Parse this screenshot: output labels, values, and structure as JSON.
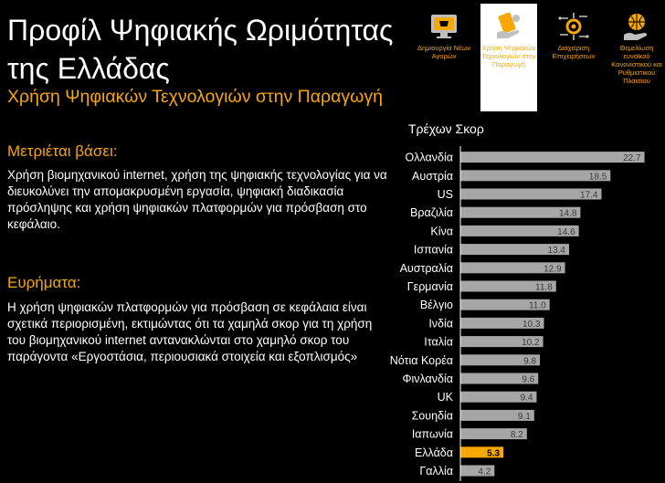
{
  "header": {
    "title_line1": "Προφίλ Ψηφιακής Ωριμότητας",
    "title_line2": "της Ελλάδας",
    "subtitle": "Χρήση Ψηφιακών Τεχνολογιών στην Παραγωγή"
  },
  "nav": {
    "items": [
      {
        "label": "Δημιουργία Νέων Αγορών",
        "icon": "cart-screen-icon"
      },
      {
        "label": "Χρήση Ψηφιακών Τεχνολογιών στην Παραγωγή",
        "icon": "hand-device-icon"
      },
      {
        "label": "Διαχείριση Επιχειρήσεων",
        "icon": "circuit-gear-icon"
      },
      {
        "label": "Θεμελίωση ευνοϊκού Κανονιστικού και Ρυθμιστικού Πλαισίου",
        "icon": "hand-globe-icon"
      }
    ]
  },
  "measured": {
    "heading": "Μετριέται βάσει:",
    "text": "Χρήση βιομηχανικού internet, χρήση της ψηφιακής τεχνολογίας για να διευκολύνει την απομακρυσμένη εργασία, ψηφιακή διαδικασία πρόσληψης και χρήση ψηφιακών πλατφορμών για πρόσβαση στο κεφάλαιο."
  },
  "findings": {
    "heading": "Ευρήματα:",
    "text": "Η χρήση ψηφιακών πλατφορμών για πρόσβαση σε κεφάλαια είναι σχετικά περιορισμένη, εκτιμώντας ότι τα χαμηλά σκορ για τη χρήση του βιομηχανικού internet αντανακλώνται στο χαμηλό σκορ του παράγοντα «Εργοστάσια, περιουσιακά στοιχεία και εξοπλισμός»"
  },
  "chart_data": {
    "type": "bar",
    "orientation": "horizontal",
    "title": "Τρέχων Σκορ",
    "categories": [
      "Ολλανδία",
      "Αυστρία",
      "US",
      "Βραζιλία",
      "Κίνα",
      "Ισπανία",
      "Αυστραλία",
      "Γερμανία",
      "Βέλγιο",
      "Ινδία",
      "Ιταλία",
      "Νότια Κορέα",
      "Φινλανδία",
      "UK",
      "Σουηδία",
      "Ιαπωνία",
      "Ελλάδα",
      "Γαλλία"
    ],
    "values": [
      22.7,
      18.5,
      17.4,
      14.8,
      14.6,
      13.4,
      12.9,
      11.8,
      11.0,
      10.3,
      10.2,
      9.8,
      9.6,
      9.4,
      9.1,
      8.2,
      5.3,
      4.2
    ],
    "value_labels": [
      "22.7",
      "18.5",
      "17.4",
      "14.8",
      "14.6",
      "13.4",
      "12.9",
      "11.8",
      "11.0",
      "10.3",
      "10.2",
      "9.8",
      "9.6",
      "9.4",
      "9.1",
      "8.2",
      "5.3",
      "4.2"
    ],
    "highlight": "Ελλάδα",
    "xlim": [
      0,
      25
    ],
    "colors": {
      "bar": "#a6a6a6",
      "highlight": "#f7a800",
      "axis": "#ffffff",
      "label_dark": "#000000"
    }
  }
}
